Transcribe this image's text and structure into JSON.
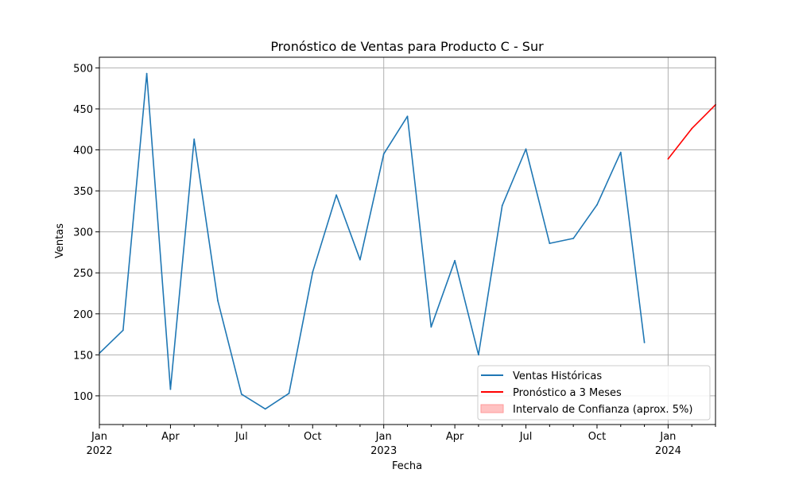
{
  "chart_data": {
    "type": "line",
    "title": "Pronóstico de Ventas para Producto C - Sur",
    "xlabel": "Fecha",
    "ylabel": "Ventas",
    "ylim": [
      65,
      513
    ],
    "xlim": [
      "2022-01",
      "2024-03"
    ],
    "grid": true,
    "legend_position": "lower-right",
    "x_ticks": [
      {
        "date": "2022-01",
        "label": "Jan",
        "year": "2022",
        "major": true
      },
      {
        "date": "2022-04",
        "label": "Apr",
        "year": "",
        "major": false
      },
      {
        "date": "2022-07",
        "label": "Jul",
        "year": "",
        "major": false
      },
      {
        "date": "2022-10",
        "label": "Oct",
        "year": "",
        "major": false
      },
      {
        "date": "2023-01",
        "label": "Jan",
        "year": "2023",
        "major": true
      },
      {
        "date": "2023-04",
        "label": "Apr",
        "year": "",
        "major": false
      },
      {
        "date": "2023-07",
        "label": "Jul",
        "year": "",
        "major": false
      },
      {
        "date": "2023-10",
        "label": "Oct",
        "year": "",
        "major": false
      },
      {
        "date": "2024-01",
        "label": "Jan",
        "year": "2024",
        "major": true
      }
    ],
    "y_ticks": [
      100,
      150,
      200,
      250,
      300,
      350,
      400,
      450,
      500
    ],
    "series": [
      {
        "name": "Ventas Históricas",
        "color": "#1f77b4",
        "x": [
          "2022-01",
          "2022-02",
          "2022-03",
          "2022-04",
          "2022-05",
          "2022-06",
          "2022-07",
          "2022-08",
          "2022-09",
          "2022-10",
          "2022-11",
          "2022-12",
          "2023-01",
          "2023-02",
          "2023-03",
          "2023-04",
          "2023-05",
          "2023-06",
          "2023-07",
          "2023-08",
          "2023-09",
          "2023-10",
          "2023-11",
          "2023-12"
        ],
        "values": [
          152,
          180,
          493,
          108,
          413,
          216,
          102,
          84,
          103,
          251,
          345,
          266,
          395,
          441,
          184,
          265,
          150,
          332,
          401,
          286,
          292,
          333,
          397,
          165
        ]
      },
      {
        "name": "Pronóstico a 3 Meses",
        "color": "#ff0000",
        "x": [
          "2024-01",
          "2024-02",
          "2024-03"
        ],
        "values": [
          389,
          426,
          455
        ]
      },
      {
        "name": "Intervalo de Confianza (aprox. 5%)",
        "color": "#ff9999",
        "type": "band",
        "x": [],
        "values": []
      }
    ]
  }
}
